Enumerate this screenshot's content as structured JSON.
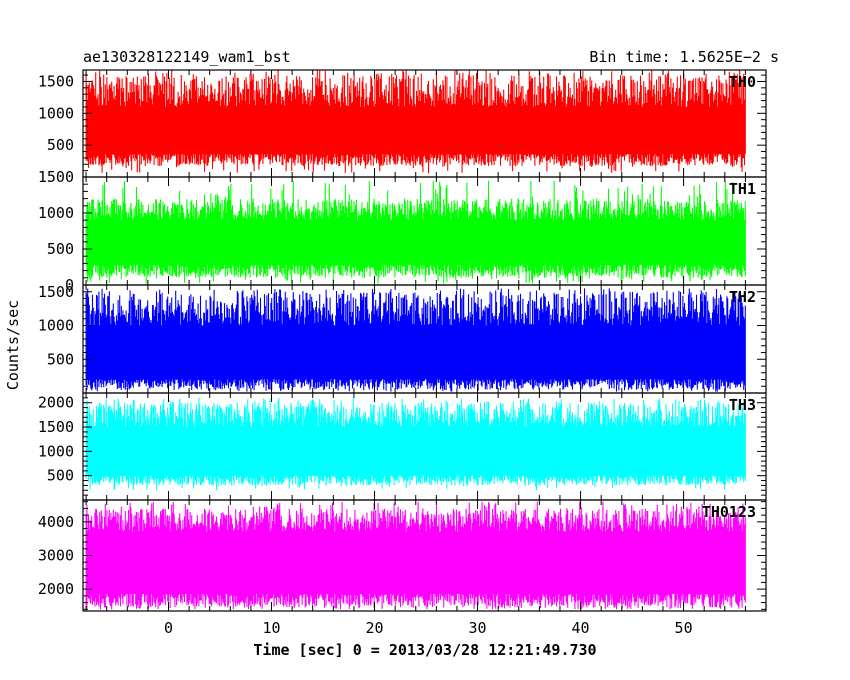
{
  "header": {
    "title": "ae130328122149_wam1_bst",
    "bin_time": "Bin time: 1.5625E−2 s"
  },
  "axes": {
    "xlabel": "Time [sec] 0 = 2013/03/28 12:21:49.730",
    "ylabel": "Counts/sec"
  },
  "chart_data": {
    "type": "line",
    "style": "stacked light-curve panels, shared time axis, dense noise filled to panel bottom",
    "x": {
      "label": "Time [sec] 0 = 2013/03/28 12:21:49.730",
      "range": [
        -8.3,
        58.0
      ],
      "data_range": [
        -8.0,
        56.0
      ],
      "ticks": [
        0,
        10,
        20,
        30,
        40,
        50
      ],
      "tick_labels": [
        "0",
        "10",
        "20",
        "30",
        "40",
        "50"
      ],
      "minor_step": 2
    },
    "series": [
      {
        "name": "TH0",
        "color": "#ff0000",
        "ylim": [
          0,
          1680
        ],
        "yticks": [
          500,
          1000,
          1500
        ],
        "ytick_labels": [
          "500",
          "1000",
          "1500"
        ],
        "minor_step": 100,
        "signal": {
          "base_range": [
            170,
            380
          ],
          "mean_range": [
            550,
            850
          ],
          "peak_range": [
            1100,
            1600
          ],
          "spike_max": 1680,
          "min_dip": 60
        }
      },
      {
        "name": "TH1",
        "color": "#00ff00",
        "ylim": [
          0,
          1500
        ],
        "yticks": [
          0,
          500,
          1000,
          1500
        ],
        "ytick_labels": [
          "0",
          "500",
          "1000",
          "1500"
        ],
        "minor_step": 100,
        "signal": {
          "base_range": [
            100,
            300
          ],
          "mean_range": [
            450,
            650
          ],
          "peak_range": [
            900,
            1200
          ],
          "spike_max": 1450,
          "min_dip": 20
        }
      },
      {
        "name": "TH2",
        "color": "#0000ff",
        "ylim": [
          0,
          1600
        ],
        "yticks": [
          500,
          1000,
          1500
        ],
        "ytick_labels": [
          "500",
          "1000",
          "1500"
        ],
        "minor_step": 100,
        "signal": {
          "base_range": [
            50,
            220
          ],
          "mean_range": [
            550,
            800
          ],
          "peak_range": [
            1000,
            1500
          ],
          "spike_max": 1550,
          "min_dip": 20
        }
      },
      {
        "name": "TH3",
        "color": "#00ffff",
        "ylim": [
          0,
          2200
        ],
        "yticks": [
          500,
          1000,
          1500,
          2000
        ],
        "ytick_labels": [
          "500",
          "1000",
          "1500",
          "2000"
        ],
        "minor_step": 100,
        "signal": {
          "base_range": [
            300,
            520
          ],
          "mean_range": [
            900,
            1100
          ],
          "peak_range": [
            1500,
            2000
          ],
          "spike_max": 2100,
          "min_dip": 200
        }
      },
      {
        "name": "TH0123",
        "color": "#ff00ff",
        "ylim": [
          1350,
          4650
        ],
        "yticks": [
          2000,
          3000,
          4000
        ],
        "ytick_labels": [
          "2000",
          "3000",
          "4000"
        ],
        "minor_step": 200,
        "signal": {
          "base_range": [
            1450,
            1900
          ],
          "mean_range": [
            2400,
            2800
          ],
          "peak_range": [
            3700,
            4400
          ],
          "spike_max": 4600,
          "min_dip": 1400
        }
      }
    ],
    "grid": false,
    "legend": "panel labels at top-right of each panel"
  }
}
